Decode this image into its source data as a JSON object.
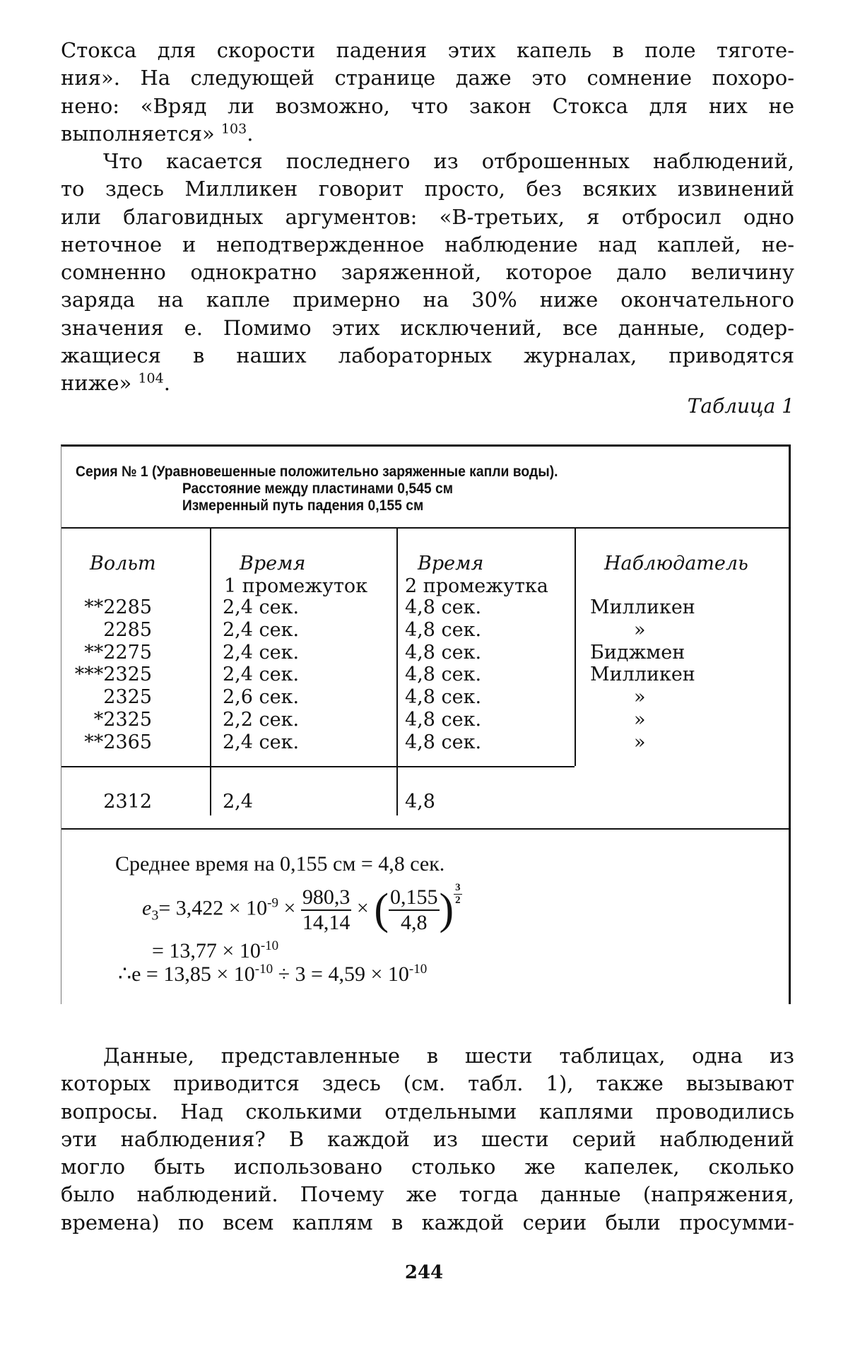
{
  "paragraphs": {
    "p1": [
      "Стокса для скорости падения этих капель в поле тяготе-",
      "ния». На следующей странице даже это сомнение похоро-",
      "нено: «Вряд ли возможно, что закон Стокса для них не",
      "выполняется»"
    ],
    "p1_ref": "103",
    "p1_end": ".",
    "p2": [
      "Что касается последнего из отброшенных наблюдений,",
      "то здесь Милликен говорит просто, без всяких извинений",
      "или благовидных аргументов: «В-третьих, я отбросил одно",
      "неточное и неподтвержденное наблюдение над каплей, не-",
      "сомненно однократно заряженной, которое дало величину",
      "заряда на капле примерно на 30% ниже окончательного",
      "значения e. Помимо этих исключений, все данные, содер-",
      "жащиеся в наших лабораторных журналах, приводятся",
      "ниже»"
    ],
    "p2_ref": "104",
    "p2_end": ".",
    "p3": [
      "Данные, представленные в шести таблицах, одна из",
      "которых приводится здесь (см. табл. 1), также вызывают",
      "вопросы. Над сколькими отдельными каплями проводились",
      "эти наблюдения? В каждой из шести серий наблюдений",
      "могло быть использовано столько же капелек, сколько",
      "было наблюдений. Почему же тогда данные (напряжения,",
      "времена) по всем каплям в каждой серии были просумми-"
    ]
  },
  "table_caption": "Таблица 1",
  "table": {
    "header_line1": "Серия № 1 (Уравновешенные положительно заряженные капли воды).",
    "header_line2": "Расстояние между пластинами 0,545 см",
    "header_line3": "Измеренный путь падения 0,155 см",
    "columns": [
      {
        "label": "Вольт",
        "sub": ""
      },
      {
        "label": "Время",
        "sub": "1 промежуток"
      },
      {
        "label": "Время",
        "sub": "2 промежутка"
      },
      {
        "label": "Наблюдатель",
        "sub": ""
      }
    ],
    "rows": [
      [
        "**2285",
        "2,4 сек.",
        "4,8 сек.",
        "Милликен"
      ],
      [
        "2285",
        "2,4 сек.",
        "4,8 сек.",
        "»"
      ],
      [
        "**2275",
        "2,4 сек.",
        "4,8 сек.",
        "Биджмен"
      ],
      [
        "***2325",
        "2,4 сек.",
        "4,8 сек.",
        "Милликен"
      ],
      [
        "2325",
        "2,6 сек.",
        "4,8 сек.",
        "»"
      ],
      [
        "*2325",
        "2,2 сек.",
        "4,8 сек.",
        "»"
      ],
      [
        "**2365",
        "2,4 сек.",
        "4,8 сек.",
        "»"
      ]
    ],
    "totals": [
      "2312",
      "2,4",
      "4,8"
    ],
    "formula": {
      "line1": "Среднее время на 0,155 см = 4,8 сек.",
      "e3_lhs": "e",
      "e3_sub": "3",
      "e3_part1": "= 3,422 × 10",
      "e3_exp1": "-9",
      "times": "×",
      "frac1_num": "980,3",
      "frac1_den": "14,14",
      "frac2_num": "0,155",
      "frac2_den": "4,8",
      "power_num": "3",
      "power_den": "2",
      "line3": "= 13,77 × 10",
      "line3_exp": "-10",
      "line4_a": "∴e = 13,85 × 10",
      "line4_exp1": "-10",
      "line4_b": " ÷ 3 = 4,59 × 10",
      "line4_exp2": "-10"
    }
  },
  "page_number": "244"
}
